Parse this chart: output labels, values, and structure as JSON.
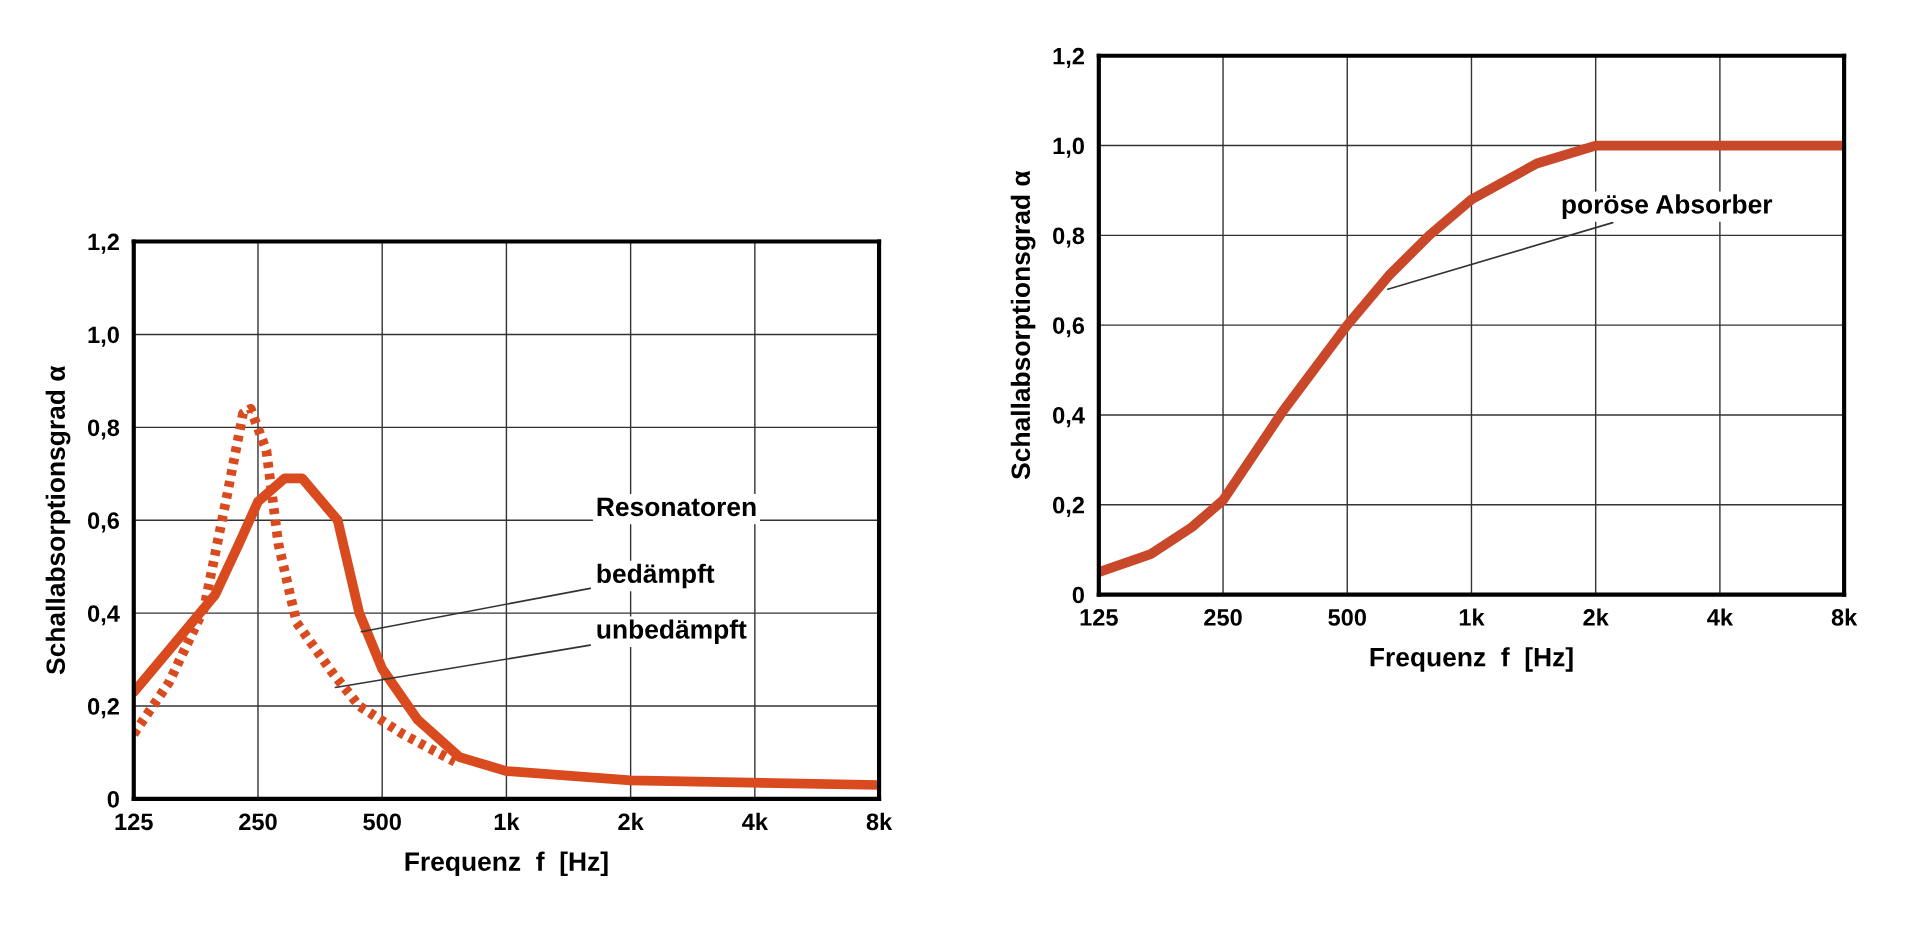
{
  "chart_data": [
    {
      "type": "line",
      "xlabel": "Frequenz  f  [Hz]",
      "ylabel": "Schallabsorptionsgrad α",
      "log": "x",
      "grid": true,
      "xlim": [
        125,
        8000
      ],
      "ylim": [
        0,
        1.2
      ],
      "xticks": [
        125,
        250,
        500,
        {
          "value": 1000,
          "label": "1k"
        },
        {
          "value": 2000,
          "label": "2k"
        },
        {
          "value": 4000,
          "label": "4k"
        },
        {
          "value": 8000,
          "label": "8k"
        }
      ],
      "yticks": [
        0,
        {
          "value": 0.2,
          "label": "0,2"
        },
        {
          "value": 0.4,
          "label": "0,4"
        },
        {
          "value": 0.6,
          "label": "0,6"
        },
        {
          "value": 0.8,
          "label": "0,8"
        },
        {
          "value": 1.0,
          "label": "1,0"
        },
        {
          "value": 1.2,
          "label": "1,2"
        }
      ],
      "series": [
        {
          "color": "#d94a1e",
          "line_style": "solid",
          "x": [
            125,
            152,
            197,
            225,
            250,
            290,
            320,
            390,
            440,
            500,
            610,
            770,
            1000,
            2000,
            8000
          ],
          "values": [
            0.23,
            0.32,
            0.44,
            0.55,
            0.64,
            0.69,
            0.69,
            0.6,
            0.4,
            0.28,
            0.17,
            0.09,
            0.06,
            0.04,
            0.03
          ]
        },
        {
          "color": "#d94a1e",
          "line_style": "dotted",
          "x": [
            125,
            152,
            185,
            210,
            230,
            240,
            262,
            280,
            310,
            380,
            440,
            560,
            750
          ],
          "values": [
            0.14,
            0.25,
            0.41,
            0.65,
            0.83,
            0.84,
            0.75,
            0.55,
            0.38,
            0.27,
            0.2,
            0.14,
            0.08
          ]
        }
      ],
      "annotations": [
        "Resonatoren",
        {
          "text": "bedämpft",
          "x": 445,
          "y": 0.36
        },
        {
          "text": "unbedämpft",
          "x": 385,
          "y": 0.24
        }
      ]
    },
    {
      "type": "line",
      "xlabel": "Frequenz  f  [Hz]",
      "ylabel": "Schallabsorptionsgrad α",
      "log": "x",
      "grid": true,
      "xlim": [
        125,
        8000
      ],
      "ylim": [
        0,
        1.2
      ],
      "xticks": [
        125,
        250,
        500,
        {
          "value": 1000,
          "label": "1k"
        },
        {
          "value": 2000,
          "label": "2k"
        },
        {
          "value": 4000,
          "label": "4k"
        },
        {
          "value": 8000,
          "label": "8k"
        }
      ],
      "yticks": [
        0,
        {
          "value": 0.2,
          "label": "0,2"
        },
        {
          "value": 0.4,
          "label": "0,4"
        },
        {
          "value": 0.6,
          "label": "0,6"
        },
        {
          "value": 0.8,
          "label": "0,8"
        },
        {
          "value": 1.0,
          "label": "1,0"
        },
        {
          "value": 1.2,
          "label": "1,2"
        }
      ],
      "series": [
        {
          "color": "#c9482a",
          "line_style": "solid",
          "x": [
            125,
            167,
            210,
            250,
            350,
            500,
            630,
            790,
            1000,
            1440,
            2000,
            8000
          ],
          "values": [
            0.05,
            0.09,
            0.15,
            0.21,
            0.41,
            0.6,
            0.71,
            0.8,
            0.88,
            0.96,
            1.0,
            1.0
          ]
        }
      ],
      "annotations": [
        {
          "text": "poröse Absorber",
          "x": 627,
          "y": 0.68
        }
      ]
    }
  ]
}
